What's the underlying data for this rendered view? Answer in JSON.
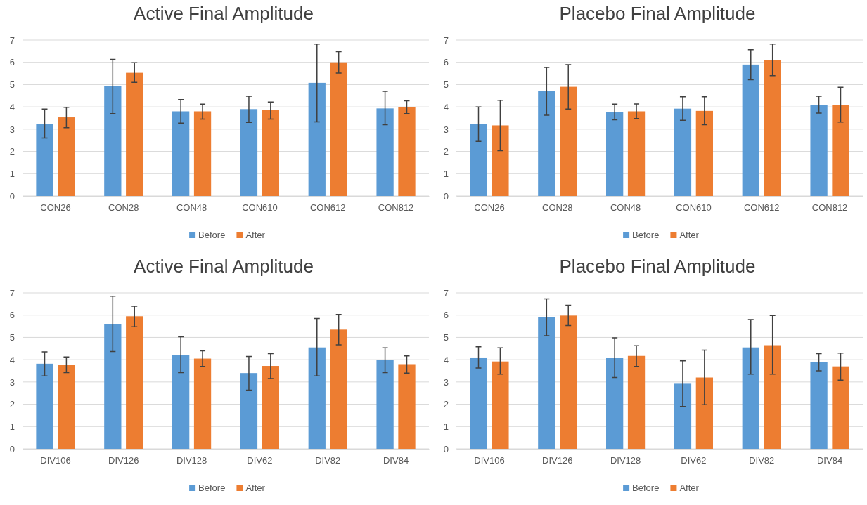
{
  "chart_data": [
    {
      "type": "bar",
      "title": "Active Final Amplitude",
      "categories": [
        "CON26",
        "CON28",
        "CON48",
        "CON610",
        "CON612",
        "CON812"
      ],
      "ylim": [
        0,
        7
      ],
      "yticks": [
        0,
        1,
        2,
        3,
        4,
        5,
        6,
        7
      ],
      "grid": "y",
      "legend": "bottom",
      "series": [
        {
          "name": "Before",
          "color": "#5b9bd5",
          "values": [
            3.23,
            4.93,
            3.8,
            3.9,
            5.08,
            3.93
          ],
          "errors": [
            [
              2.6,
              3.9
            ],
            [
              3.7,
              6.13
            ],
            [
              3.27,
              4.33
            ],
            [
              3.3,
              4.48
            ],
            [
              3.33,
              6.82
            ],
            [
              3.2,
              4.7
            ]
          ]
        },
        {
          "name": "After",
          "color": "#ed7d31",
          "values": [
            3.53,
            5.53,
            3.8,
            3.85,
            6.0,
            3.98
          ],
          "errors": [
            [
              3.07,
              3.98
            ],
            [
              5.1,
              5.98
            ],
            [
              3.45,
              4.12
            ],
            [
              3.45,
              4.22
            ],
            [
              5.52,
              6.48
            ],
            [
              3.7,
              4.27
            ]
          ]
        }
      ]
    },
    {
      "type": "bar",
      "title": "Placebo Final Amplitude",
      "categories": [
        "CON26",
        "CON28",
        "CON48",
        "CON610",
        "CON612",
        "CON812"
      ],
      "ylim": [
        0,
        7
      ],
      "yticks": [
        0,
        1,
        2,
        3,
        4,
        5,
        6,
        7
      ],
      "grid": "y",
      "legend": "bottom",
      "series": [
        {
          "name": "Before",
          "color": "#5b9bd5",
          "values": [
            3.23,
            4.72,
            3.77,
            3.92,
            5.9,
            4.08
          ],
          "errors": [
            [
              2.45,
              4.0
            ],
            [
              3.63,
              5.77
            ],
            [
              3.42,
              4.12
            ],
            [
              3.4,
              4.45
            ],
            [
              5.22,
              6.57
            ],
            [
              3.72,
              4.48
            ]
          ]
        },
        {
          "name": "After",
          "color": "#ed7d31",
          "values": [
            3.17,
            4.9,
            3.8,
            3.82,
            6.1,
            4.08
          ],
          "errors": [
            [
              2.03,
              4.3
            ],
            [
              3.9,
              5.9
            ],
            [
              3.48,
              4.13
            ],
            [
              3.2,
              4.45
            ],
            [
              5.4,
              6.82
            ],
            [
              3.32,
              4.88
            ]
          ]
        }
      ]
    },
    {
      "type": "bar",
      "title": "Active Final Amplitude",
      "categories": [
        "DIV106",
        "DIV126",
        "DIV128",
        "DIV62",
        "DIV82",
        "DIV84"
      ],
      "ylim": [
        0,
        7
      ],
      "yticks": [
        0,
        1,
        2,
        3,
        4,
        5,
        6,
        7
      ],
      "grid": "y",
      "legend": "bottom",
      "series": [
        {
          "name": "Before",
          "color": "#5b9bd5",
          "values": [
            3.82,
            5.6,
            4.22,
            3.4,
            4.55,
            3.98
          ],
          "errors": [
            [
              3.27,
              4.35
            ],
            [
              4.37,
              6.85
            ],
            [
              3.42,
              5.03
            ],
            [
              2.63,
              4.15
            ],
            [
              3.27,
              5.85
            ],
            [
              3.42,
              4.53
            ]
          ]
        },
        {
          "name": "After",
          "color": "#ed7d31",
          "values": [
            3.77,
            5.95,
            4.05,
            3.72,
            5.35,
            3.8
          ],
          "errors": [
            [
              3.42,
              4.12
            ],
            [
              5.48,
              6.4
            ],
            [
              3.7,
              4.4
            ],
            [
              3.15,
              4.27
            ],
            [
              4.67,
              6.03
            ],
            [
              3.4,
              4.17
            ]
          ]
        }
      ]
    },
    {
      "type": "bar",
      "title": "Placebo Final Amplitude",
      "categories": [
        "DIV106",
        "DIV126",
        "DIV128",
        "DIV62",
        "DIV82",
        "DIV84"
      ],
      "ylim": [
        0,
        7
      ],
      "yticks": [
        0,
        1,
        2,
        3,
        4,
        5,
        6,
        7
      ],
      "grid": "y",
      "legend": "bottom",
      "series": [
        {
          "name": "Before",
          "color": "#5b9bd5",
          "values": [
            4.1,
            5.9,
            4.08,
            2.92,
            4.55,
            3.88
          ],
          "errors": [
            [
              3.63,
              4.58
            ],
            [
              5.08,
              6.73
            ],
            [
              3.2,
              4.98
            ],
            [
              1.9,
              3.95
            ],
            [
              3.35,
              5.8
            ],
            [
              3.5,
              4.27
            ]
          ]
        },
        {
          "name": "After",
          "color": "#ed7d31",
          "values": [
            3.92,
            5.98,
            4.17,
            3.2,
            4.65,
            3.7
          ],
          "errors": [
            [
              3.35,
              4.53
            ],
            [
              5.53,
              6.45
            ],
            [
              3.7,
              4.63
            ],
            [
              1.98,
              4.43
            ],
            [
              3.35,
              5.98
            ],
            [
              3.08,
              4.3
            ]
          ]
        }
      ]
    }
  ]
}
